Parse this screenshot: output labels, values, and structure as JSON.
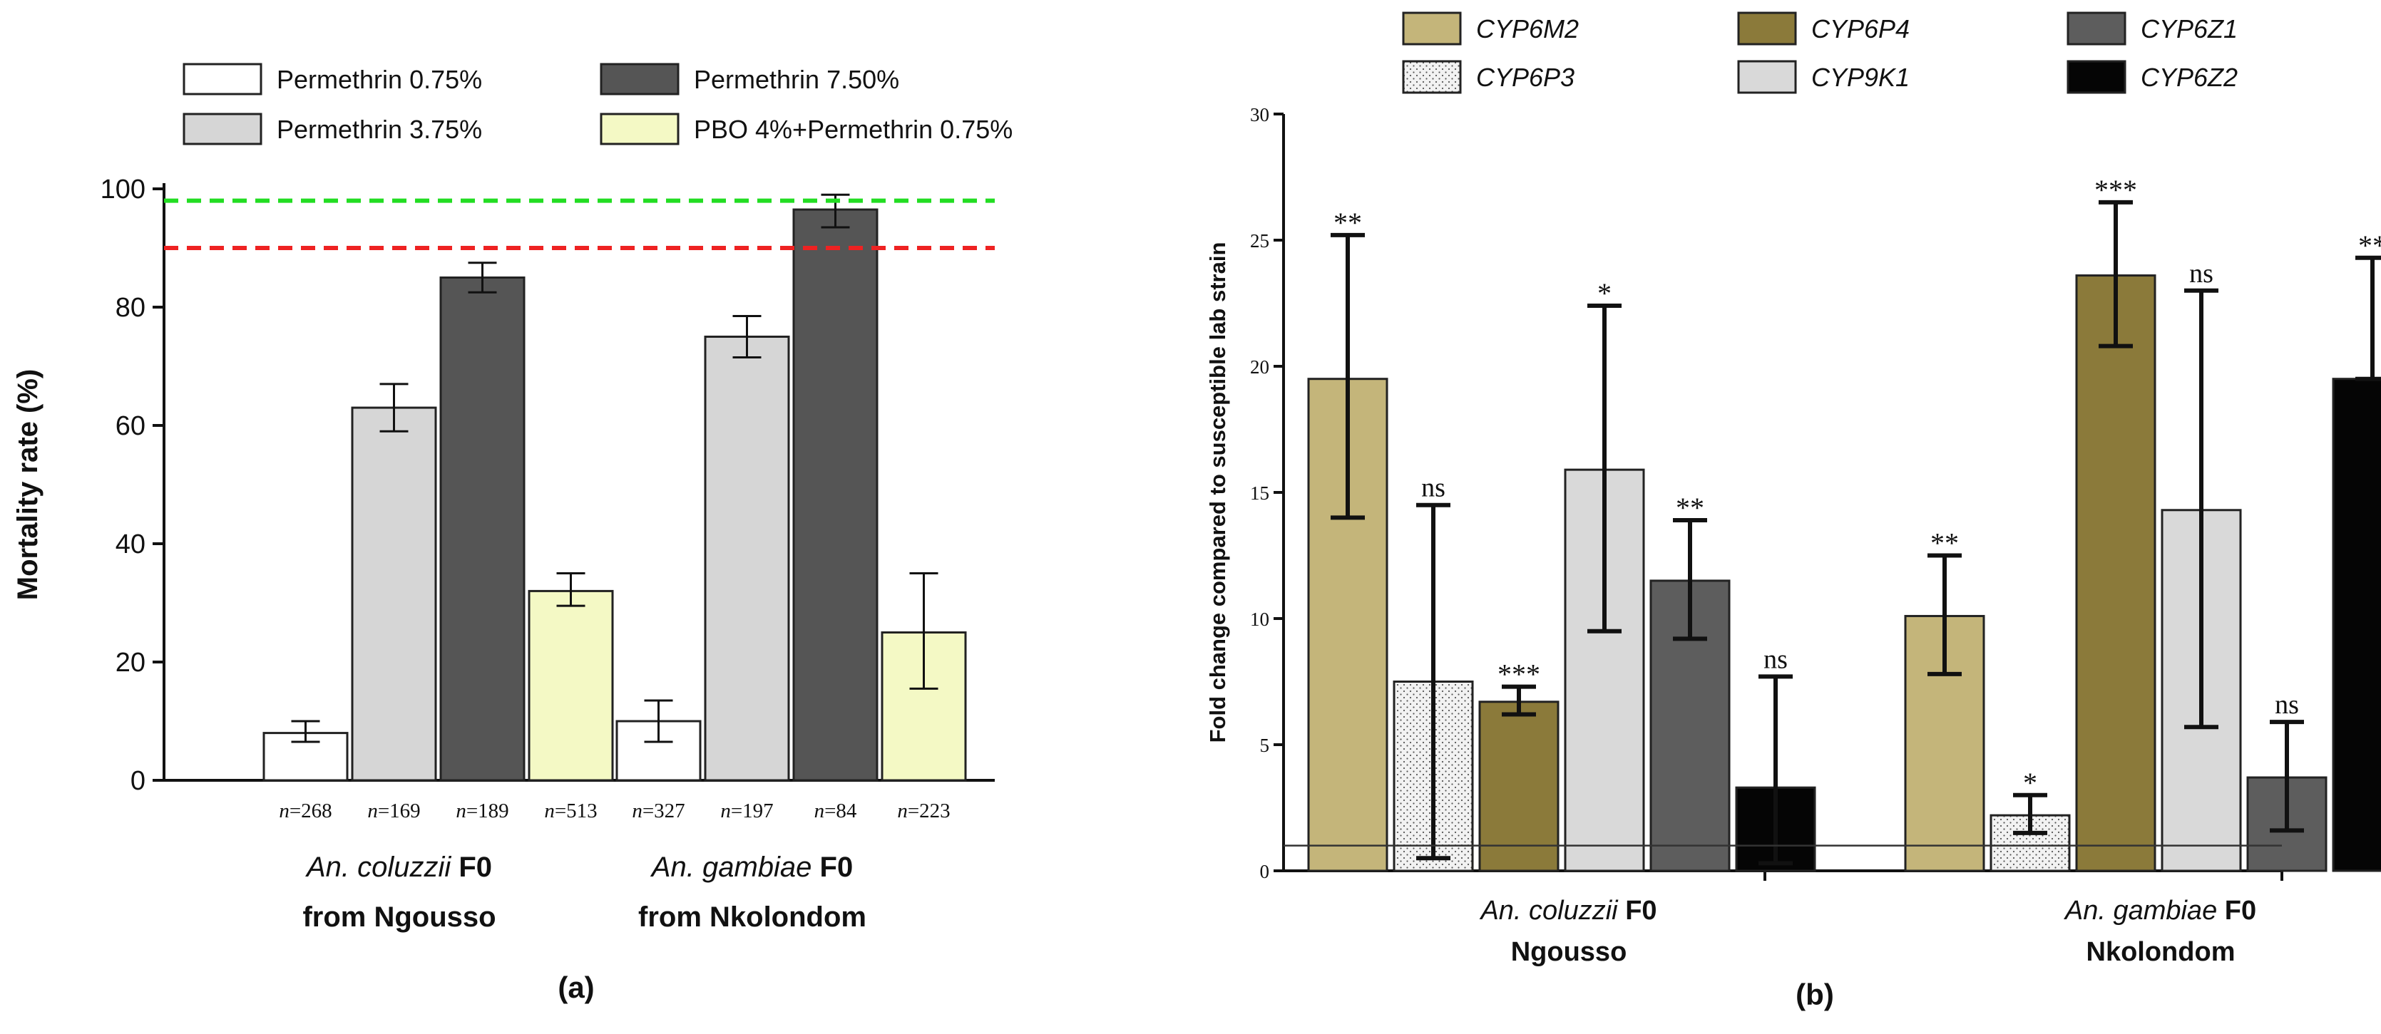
{
  "colors": {
    "perm075": "#ffffff",
    "perm375": "#d6d6d6",
    "perm750": "#555555",
    "pbo": "#f4f9c5",
    "green_line": "#22dd22",
    "red_line": "#ee2222",
    "cyp6m2": "#c4b57a",
    "cyp6p3": "#f2f2f2",
    "cyp6p4": "#8b7a3a",
    "cyp9k1": "#d9d9d9",
    "cyp6z1": "#5d5d5d",
    "cyp6z2": "#050505"
  },
  "chart_data": [
    {
      "type": "bar",
      "panel_label": "(a)",
      "title": "",
      "xlabel": "",
      "ylabel": "Mortality rate (%)",
      "ylim": [
        0,
        100
      ],
      "yticks": [
        "0",
        "20",
        "40",
        "60",
        "80",
        "100"
      ],
      "legend_position": "top",
      "groups": [
        {
          "name_italic": "An. coluzzii",
          "name_bold": "F0",
          "sub": "from Ngousso"
        },
        {
          "name_italic": "An. gambiae",
          "name_bold": "F0",
          "sub": "from Nkolondom"
        }
      ],
      "series": [
        {
          "name": "Permethrin",
          "dose": "0.75%",
          "color_key": "perm075",
          "values": [
            8,
            10
          ],
          "err_low": [
            1.5,
            3.5
          ],
          "err_high": [
            2,
            3.5
          ],
          "n": [
            "268",
            "327"
          ]
        },
        {
          "name": "Permethrin",
          "dose": "3.75%",
          "color_key": "perm375",
          "values": [
            63,
            75
          ],
          "err_low": [
            4,
            3.5
          ],
          "err_high": [
            4,
            3.5
          ],
          "n": [
            "169",
            "197"
          ]
        },
        {
          "name": "Permethrin",
          "dose": "7.50%",
          "color_key": "perm750",
          "values": [
            85,
            96.5
          ],
          "err_low": [
            2.5,
            3
          ],
          "err_high": [
            2.5,
            2.5
          ],
          "n": [
            "189",
            "84"
          ]
        },
        {
          "name": "PBO 4%+Permethrin",
          "dose": "0.75%",
          "color_key": "pbo",
          "values": [
            32,
            25
          ],
          "err_low": [
            2.5,
            9.5
          ],
          "err_high": [
            3,
            10
          ],
          "n": [
            "513",
            "223"
          ]
        }
      ],
      "n_prefix": "n",
      "reference_lines": [
        {
          "y": 98,
          "color_key": "green_line",
          "style": "dashed"
        },
        {
          "y": 90,
          "color_key": "red_line",
          "style": "dashed"
        }
      ]
    },
    {
      "type": "bar",
      "panel_label": "(b)",
      "title": "",
      "xlabel": "",
      "ylabel": "Fold change compared to susceptible lab strain",
      "ylim": [
        0,
        30
      ],
      "yticks": [
        "0",
        "5",
        "10",
        "15",
        "20",
        "25",
        "30"
      ],
      "legend_position": "top",
      "groups": [
        {
          "name_italic": "An. coluzzii",
          "name_bold": "F0",
          "sub": "Ngousso"
        },
        {
          "name_italic": "An. gambiae",
          "name_bold": "F0",
          "sub": "Nkolondom"
        }
      ],
      "series": [
        {
          "name": "CYP6M2",
          "color_key": "cyp6m2",
          "values": [
            19.5,
            10.1
          ],
          "err_low": [
            5.5,
            2.3
          ],
          "err_high": [
            5.7,
            2.4
          ],
          "sig": [
            "**",
            "**"
          ]
        },
        {
          "name": "CYP6P3",
          "color_key": "cyp6p3",
          "values": [
            7.5,
            2.2
          ],
          "err_low": [
            7.0,
            0.7
          ],
          "err_high": [
            7.0,
            0.8
          ],
          "sig": [
            "ns",
            "*"
          ]
        },
        {
          "name": "CYP6P4",
          "color_key": "cyp6p4",
          "values": [
            6.7,
            23.6
          ],
          "err_low": [
            0.5,
            2.8
          ],
          "err_high": [
            0.6,
            2.9
          ],
          "sig": [
            "***",
            "***"
          ]
        },
        {
          "name": "CYP9K1",
          "color_key": "cyp9k1",
          "values": [
            15.9,
            14.3
          ],
          "err_low": [
            6.4,
            8.6
          ],
          "err_high": [
            6.5,
            8.7
          ],
          "sig": [
            "*",
            "ns"
          ]
        },
        {
          "name": "CYP6Z1",
          "color_key": "cyp6z1",
          "values": [
            11.5,
            3.7
          ],
          "err_low": [
            2.3,
            2.1
          ],
          "err_high": [
            2.4,
            2.2
          ],
          "sig": [
            "**",
            "ns"
          ]
        },
        {
          "name": "CYP6Z2",
          "color_key": "cyp6z2",
          "values": [
            3.3,
            19.5
          ],
          "err_low": [
            3.0,
            0
          ],
          "err_high": [
            4.4,
            4.8
          ],
          "sig": [
            "ns",
            "**"
          ]
        }
      ],
      "reference_lines": [
        {
          "y": 1,
          "color_key": "",
          "style": "solid"
        }
      ]
    }
  ]
}
